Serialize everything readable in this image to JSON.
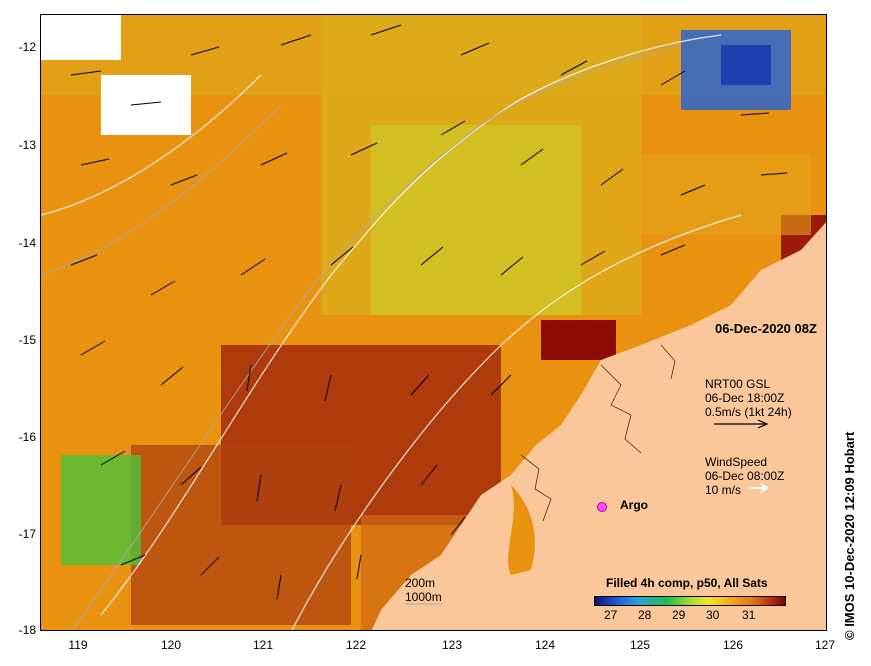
{
  "map": {
    "date_label": "06-Dec-2020 08Z",
    "credit": "© IMOS 10-Dec-2020 12:09 Hobart",
    "x_ticks": [
      "119",
      "120",
      "121",
      "122",
      "123",
      "124",
      "125",
      "126",
      "127"
    ],
    "y_ticks": [
      "-12",
      "-13",
      "-14",
      "-15",
      "-16",
      "-17",
      "-18"
    ],
    "current_legend": {
      "line1": "NRT00 GSL",
      "line2": "06-Dec 18:00Z",
      "line3": "0.5m/s (1kt 24h)"
    },
    "wind_legend": {
      "line1": "WindSpeed",
      "line2": "06-Dec 08:00Z",
      "line3": "10 m/s"
    },
    "argo_label": "Argo",
    "depth_legend": {
      "line1": "200m",
      "line2": "1000m"
    },
    "colorbar": {
      "title": "Filled 4h comp, p50, All Sats",
      "labels": [
        "27",
        "28",
        "29",
        "30",
        "31"
      ]
    },
    "colors": {
      "land": "#f9c79a",
      "warm": "#e88a12",
      "hot": "#9e1a0a",
      "mid": "#b9df2a",
      "cool": "#1f56c9",
      "argo": "#ff4cff"
    }
  }
}
